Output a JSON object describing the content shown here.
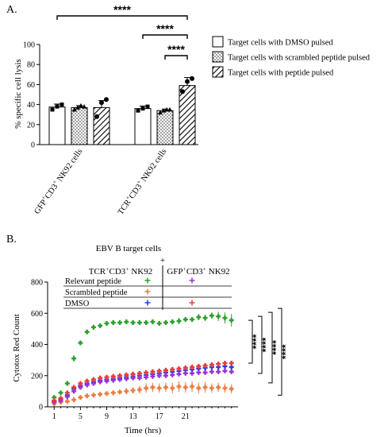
{
  "panel_a_label": "A.",
  "panel_b_label": "B.",
  "chart_data": [
    {
      "type": "bar",
      "ylabel": "% specific cell lysis",
      "ylim": [
        0,
        100
      ],
      "yticks": [
        "0",
        "20",
        "40",
        "60",
        "80",
        "100"
      ],
      "groups": [
        "GFP⁺CD3⁺ NK92 cells",
        "TCR⁺CD3⁺ NK92 cells"
      ],
      "group_labels": [
        {
          "base": "GFP",
          "sup1": "+",
          "mid": "CD3",
          "sup2": "+",
          "tail": " NK92 cells"
        },
        {
          "base": "TCR",
          "sup1": "+",
          "mid": "CD3",
          "sup2": "+",
          "tail": " NK92 cells"
        }
      ],
      "series": [
        {
          "name": "Target cells with DMSO pulsed",
          "pattern": "none",
          "values": [
            37.5,
            36
          ],
          "errors": [
            3,
            2.5
          ],
          "points": [
            [
              35,
              38,
              40
            ],
            [
              34,
              36,
              38
            ]
          ]
        },
        {
          "name": "Target cells with scrambled peptide pulsed",
          "pattern": "dots",
          "values": [
            37,
            34
          ],
          "errors": [
            2,
            1.5
          ],
          "points": [
            [
              35,
              37,
              39,
              38
            ],
            [
              32,
              34,
              35,
              35
            ]
          ]
        },
        {
          "name": "Target cells with peptide pulsed",
          "pattern": "hatch",
          "values": [
            37,
            59
          ],
          "errors": [
            7,
            8
          ],
          "points": [
            [
              28,
              42,
              45
            ],
            [
              53,
              63,
              66
            ]
          ]
        }
      ],
      "significance": [
        {
          "label": "****",
          "from": 0,
          "to": 5
        },
        {
          "label": "****",
          "from": 3,
          "to": 5
        },
        {
          "label": "****",
          "from": 4,
          "to": 5
        }
      ]
    },
    {
      "type": "scatter",
      "title_line1": "EBV B target cells",
      "title_line2": "+",
      "xlabel": "Time (hrs)",
      "ylabel": "Cytotox Red Count",
      "xlim": [
        0,
        29
      ],
      "ylim": [
        0,
        800
      ],
      "xticks": [
        1,
        5,
        9,
        13,
        17,
        21
      ],
      "yticks": [
        0,
        200,
        400,
        600,
        800
      ],
      "table": {
        "col_headers": [
          {
            "base": "TCR",
            "sup1": "+",
            "mid": "CD3",
            "sup2": "+",
            "tail": " NK92"
          },
          {
            "base": "GFP",
            "sup1": "+",
            "mid": "CD3",
            "sup2": "+",
            "tail": " NK92"
          }
        ],
        "rows": [
          {
            "label": "Relevant peptide",
            "left_color": "#2ca02c",
            "right_color": "#9b30d9"
          },
          {
            "label": "Scrambled peptide",
            "left_color": "#ea7b3f",
            "right_color": null
          },
          {
            "label": "DMSO",
            "left_color": "#2a3fe0",
            "right_color": "#e83a3a"
          }
        ]
      },
      "series": [
        {
          "name": "TCR+CD3+ NK92 Relevant peptide",
          "color": "#2ca02c",
          "x": [
            1,
            2,
            3,
            4,
            5,
            6,
            7,
            8,
            9,
            10,
            11,
            12,
            13,
            14,
            15,
            16,
            17,
            18,
            19,
            20,
            21,
            22,
            23,
            24,
            25,
            26,
            27,
            28
          ],
          "y": [
            60,
            90,
            150,
            310,
            410,
            480,
            510,
            520,
            535,
            540,
            540,
            545,
            540,
            540,
            540,
            545,
            535,
            540,
            545,
            550,
            560,
            560,
            575,
            570,
            585,
            580,
            570,
            555
          ],
          "err": [
            15,
            10,
            15,
            20,
            15,
            10,
            10,
            10,
            10,
            10,
            10,
            10,
            10,
            10,
            10,
            10,
            10,
            10,
            10,
            20,
            15,
            15,
            20,
            20,
            20,
            30,
            35,
            40
          ]
        },
        {
          "name": "TCR+CD3+ NK92 Scrambled peptide",
          "color": "#ea7b3f",
          "x": [
            1,
            2,
            3,
            4,
            5,
            6,
            7,
            8,
            9,
            10,
            11,
            12,
            13,
            14,
            15,
            16,
            17,
            18,
            19,
            20,
            21,
            22,
            23,
            24,
            25,
            26,
            27,
            28
          ],
          "y": [
            20,
            30,
            35,
            45,
            60,
            70,
            75,
            80,
            85,
            90,
            95,
            100,
            105,
            110,
            120,
            125,
            120,
            125,
            120,
            130,
            125,
            130,
            120,
            125,
            120,
            125,
            120,
            115
          ],
          "err": [
            5,
            5,
            5,
            8,
            10,
            10,
            10,
            10,
            12,
            15,
            15,
            20,
            20,
            25,
            30,
            30,
            30,
            30,
            35,
            35,
            35,
            35,
            35,
            35,
            30,
            30,
            30,
            30
          ]
        },
        {
          "name": "TCR+CD3+ NK92 DMSO",
          "color": "#2a3fe0",
          "x": [
            1,
            2,
            3,
            4,
            5,
            6,
            7,
            8,
            9,
            10,
            11,
            12,
            13,
            14,
            15,
            16,
            17,
            18,
            19,
            20,
            21,
            22,
            23,
            24,
            25,
            26,
            27,
            28
          ],
          "y": [
            35,
            45,
            75,
            115,
            135,
            150,
            160,
            170,
            175,
            180,
            185,
            190,
            195,
            200,
            205,
            210,
            215,
            220,
            225,
            230,
            235,
            240,
            245,
            250,
            255,
            255,
            260,
            255
          ],
          "err": [
            8,
            8,
            10,
            10,
            10,
            10,
            10,
            10,
            10,
            10,
            10,
            10,
            10,
            10,
            10,
            10,
            10,
            10,
            10,
            10,
            10,
            10,
            10,
            10,
            10,
            10,
            10,
            10
          ]
        },
        {
          "name": "GFP+CD3+ NK92 Relevant peptide",
          "color": "#9b30d9",
          "x": [
            1,
            2,
            3,
            4,
            5,
            6,
            7,
            8,
            9,
            10,
            11,
            12,
            13,
            14,
            15,
            16,
            17,
            18,
            19,
            20,
            21,
            22,
            23,
            24,
            25,
            26,
            27,
            28
          ],
          "y": [
            30,
            40,
            65,
            100,
            125,
            140,
            150,
            160,
            165,
            170,
            175,
            180,
            185,
            185,
            190,
            195,
            200,
            200,
            205,
            210,
            215,
            215,
            220,
            220,
            225,
            225,
            230,
            225
          ],
          "err": [
            5,
            5,
            8,
            8,
            8,
            8,
            8,
            8,
            8,
            8,
            8,
            8,
            8,
            8,
            8,
            8,
            8,
            8,
            8,
            8,
            8,
            8,
            8,
            8,
            8,
            8,
            8,
            8
          ]
        },
        {
          "name": "GFP+CD3+ NK92 DMSO",
          "color": "#e83a3a",
          "x": [
            1,
            2,
            3,
            4,
            5,
            6,
            7,
            8,
            9,
            10,
            11,
            12,
            13,
            14,
            15,
            16,
            17,
            18,
            19,
            20,
            21,
            22,
            23,
            24,
            25,
            26,
            27,
            28
          ],
          "y": [
            40,
            55,
            90,
            125,
            150,
            165,
            175,
            185,
            190,
            195,
            200,
            205,
            210,
            215,
            220,
            225,
            230,
            235,
            240,
            245,
            250,
            255,
            260,
            265,
            270,
            275,
            280,
            280
          ],
          "err": [
            8,
            8,
            10,
            10,
            10,
            10,
            10,
            10,
            10,
            10,
            10,
            10,
            10,
            10,
            10,
            10,
            10,
            10,
            10,
            10,
            10,
            10,
            10,
            10,
            10,
            10,
            10,
            10
          ]
        }
      ],
      "significance": [
        "****",
        "****",
        "****",
        "****"
      ]
    }
  ]
}
